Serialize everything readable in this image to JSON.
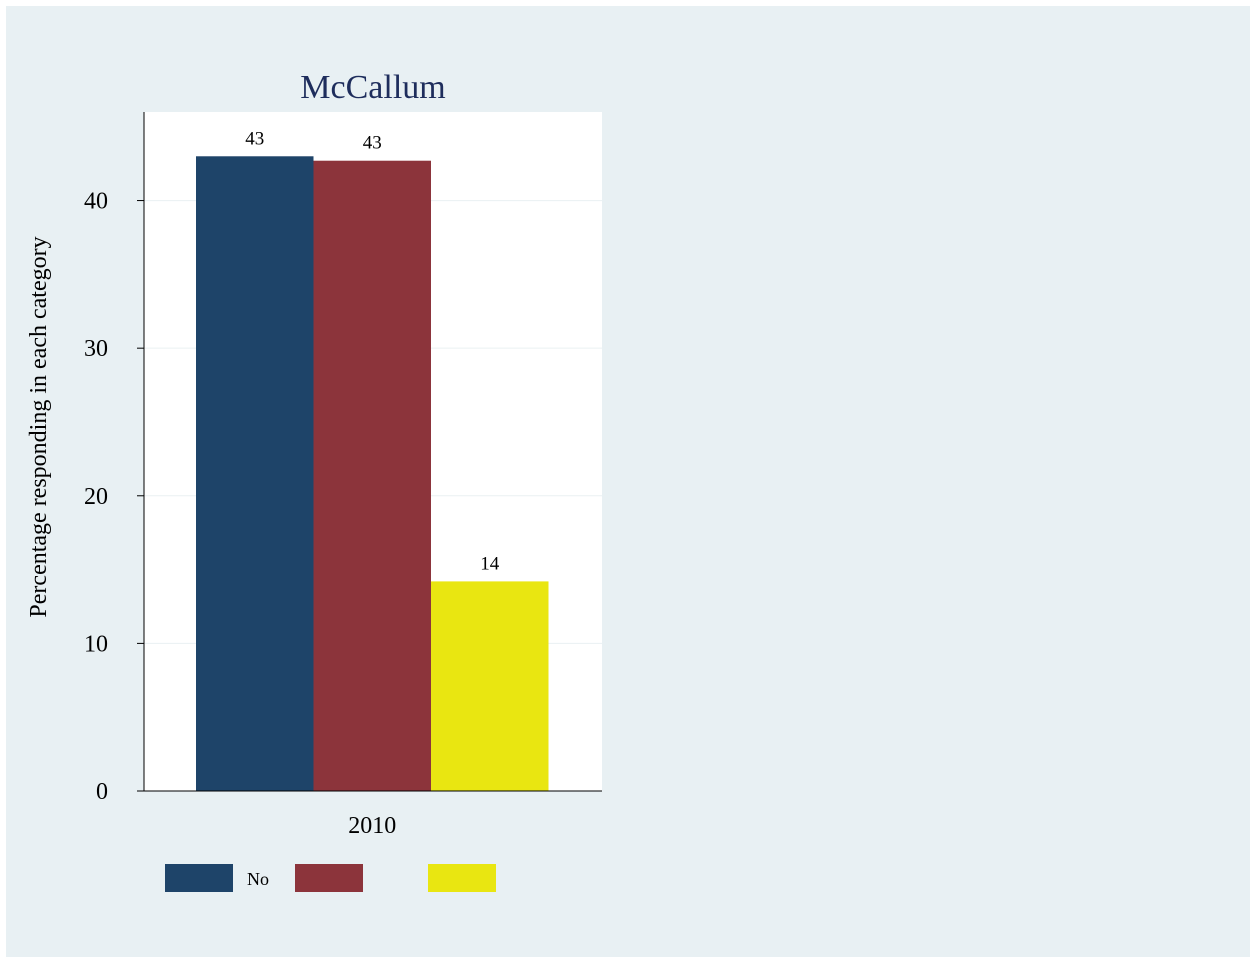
{
  "chart_data": {
    "type": "bar",
    "title": "McCallum",
    "ylabel": "Percentage responding in each category",
    "xlabel": "",
    "categories": [
      "2010"
    ],
    "series": [
      {
        "name": "No",
        "values": [
          43
        ],
        "color": "#1e4469",
        "data_label": "43"
      },
      {
        "values": [
          42.7
        ],
        "color": "#8c343b",
        "data_label": "43"
      },
      {
        "values": [
          14.2
        ],
        "color": "#e9e611",
        "data_label": "14"
      }
    ],
    "ylim": [
      0,
      46
    ],
    "yticks": [
      0,
      10,
      20,
      30,
      40
    ],
    "grid": true,
    "legend_position": "bottom"
  }
}
